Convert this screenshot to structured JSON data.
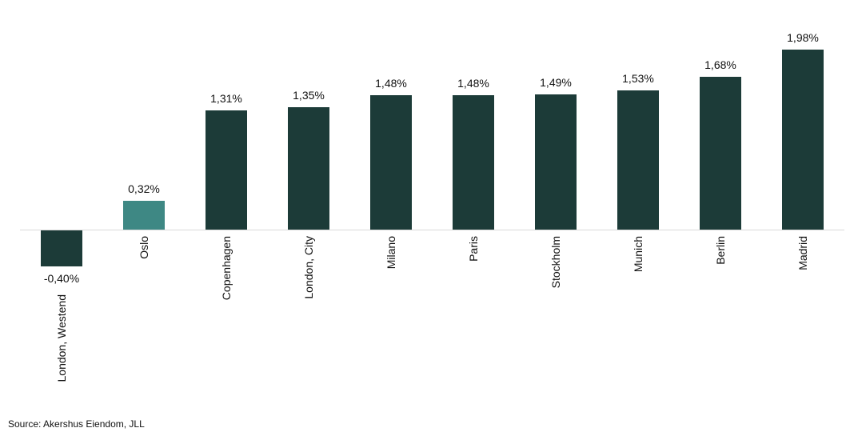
{
  "chart_data": {
    "type": "bar",
    "categories": [
      "London, Westend",
      "Oslo",
      "Copenhagen",
      "London, City",
      "Milano",
      "Paris",
      "Stockholm",
      "Munich",
      "Berlin",
      "Madrid"
    ],
    "values": [
      -0.4,
      0.32,
      1.31,
      1.35,
      1.48,
      1.48,
      1.49,
      1.53,
      1.68,
      1.98
    ],
    "value_labels": [
      "-0,40%",
      "0,32%",
      "1,31%",
      "1,35%",
      "1,48%",
      "1,48%",
      "1,49%",
      "1,53%",
      "1,68%",
      "1,98%"
    ],
    "title": "",
    "xlabel": "",
    "ylabel": "",
    "ylim": [
      -0.5,
      2.1
    ],
    "grid": false,
    "legend_position": "none",
    "highlight_index": 1,
    "bar_color": "#1C3B38",
    "highlight_color": "#3E8884",
    "axis_color": "#D9D9D9",
    "label_color": "#111111"
  },
  "source": {
    "label": "Source: Akershus Eiendom, JLL"
  }
}
